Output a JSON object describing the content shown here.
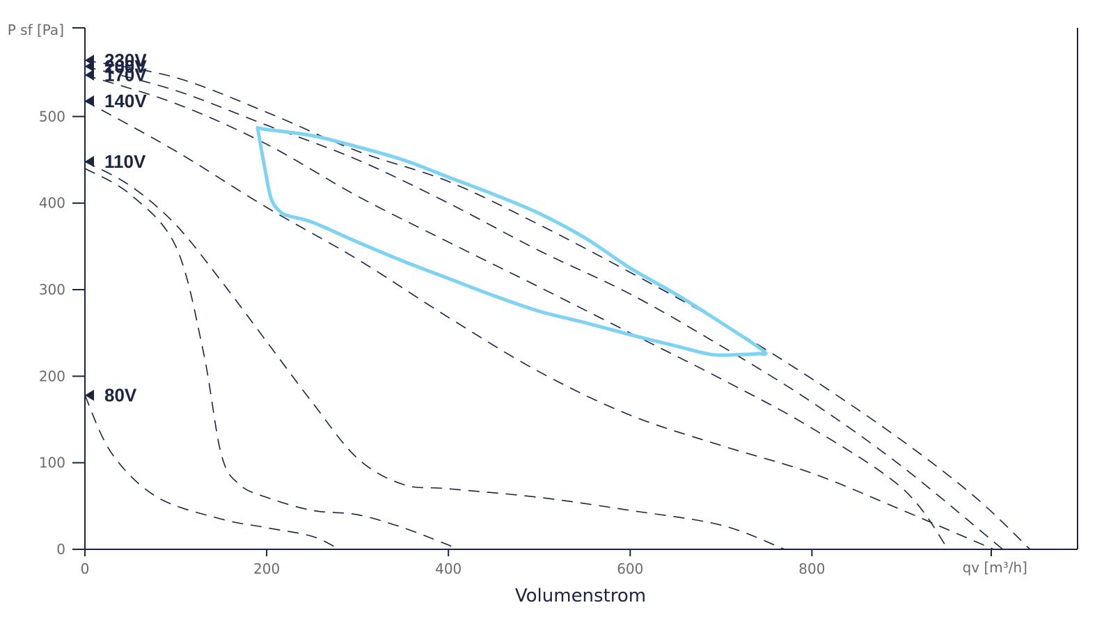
{
  "chart_data": {
    "type": "line",
    "title": "",
    "xlabel": "Volumenstrom",
    "x_axis_end_label": "qv [m³/h]",
    "ylabel": "P sf [Pa]",
    "xlim": [
      0,
      1090
    ],
    "ylim": [
      0,
      600
    ],
    "x_ticks": [
      0,
      200,
      400,
      600,
      800
    ],
    "y_ticks": [
      0,
      100,
      200,
      300,
      400,
      500
    ],
    "grid": false,
    "series": [
      {
        "name": "230V",
        "style": "dashed",
        "points": [
          [
            0,
            565
          ],
          [
            100,
            545
          ],
          [
            200,
            505
          ],
          [
            300,
            460
          ],
          [
            400,
            425
          ],
          [
            500,
            375
          ],
          [
            600,
            320
          ],
          [
            700,
            262
          ],
          [
            800,
            197
          ],
          [
            900,
            125
          ],
          [
            980,
            60
          ],
          [
            1040,
            0
          ]
        ]
      },
      {
        "name": "200V",
        "style": "dashed",
        "points": [
          [
            0,
            558
          ],
          [
            100,
            530
          ],
          [
            200,
            490
          ],
          [
            300,
            450
          ],
          [
            400,
            400
          ],
          [
            500,
            345
          ],
          [
            600,
            295
          ],
          [
            700,
            235
          ],
          [
            800,
            170
          ],
          [
            900,
            95
          ],
          [
            1010,
            0
          ]
        ]
      },
      {
        "name": "170V",
        "style": "dashed",
        "points": [
          [
            0,
            548
          ],
          [
            100,
            515
          ],
          [
            200,
            468
          ],
          [
            300,
            408
          ],
          [
            400,
            355
          ],
          [
            500,
            303
          ],
          [
            600,
            250
          ],
          [
            700,
            197
          ],
          [
            800,
            140
          ],
          [
            900,
            70
          ],
          [
            950,
            0
          ]
        ]
      },
      {
        "name": "140V",
        "style": "dashed",
        "points": [
          [
            0,
            518
          ],
          [
            100,
            460
          ],
          [
            200,
            395
          ],
          [
            300,
            335
          ],
          [
            400,
            268
          ],
          [
            500,
            205
          ],
          [
            600,
            155
          ],
          [
            700,
            120
          ],
          [
            800,
            88
          ],
          [
            900,
            45
          ],
          [
            960,
            18
          ],
          [
            1000,
            0
          ]
        ]
      },
      {
        "name": "110V",
        "style": "dashed",
        "points": [
          [
            0,
            448
          ],
          [
            50,
            420
          ],
          [
            100,
            375
          ],
          [
            150,
            310
          ],
          [
            200,
            240
          ],
          [
            250,
            170
          ],
          [
            300,
            105
          ],
          [
            350,
            75
          ],
          [
            400,
            70
          ],
          [
            500,
            60
          ],
          [
            600,
            45
          ],
          [
            700,
            28
          ],
          [
            770,
            0
          ]
        ]
      },
      {
        "name": "",
        "style": "dashed",
        "points": [
          [
            0,
            440
          ],
          [
            50,
            410
          ],
          [
            100,
            350
          ],
          [
            130,
            230
          ],
          [
            150,
            110
          ],
          [
            170,
            75
          ],
          [
            200,
            60
          ],
          [
            250,
            45
          ],
          [
            300,
            40
          ],
          [
            350,
            25
          ],
          [
            400,
            5
          ],
          [
            410,
            0
          ]
        ]
      },
      {
        "name": "80V",
        "style": "dashed",
        "points": [
          [
            0,
            178
          ],
          [
            30,
            110
          ],
          [
            80,
            60
          ],
          [
            150,
            35
          ],
          [
            200,
            25
          ],
          [
            250,
            15
          ],
          [
            280,
            0
          ]
        ]
      }
    ],
    "voltage_markers": [
      {
        "label": "230V",
        "y": 565
      },
      {
        "label": "200V",
        "y": 558
      },
      {
        "label": "170V",
        "y": 548
      },
      {
        "label": "140V",
        "y": 518
      },
      {
        "label": "110V",
        "y": 448
      },
      {
        "label": "80V",
        "y": 178
      }
    ],
    "operating_range": {
      "name": "",
      "color": "#7fd3f2",
      "points": [
        [
          190,
          487
        ],
        [
          200,
          485
        ],
        [
          250,
          478
        ],
        [
          300,
          465
        ],
        [
          350,
          450
        ],
        [
          400,
          430
        ],
        [
          450,
          410
        ],
        [
          500,
          388
        ],
        [
          550,
          360
        ],
        [
          600,
          325
        ],
        [
          650,
          295
        ],
        [
          700,
          262
        ],
        [
          747,
          229
        ],
        [
          740,
          226
        ],
        [
          720,
          225
        ],
        [
          690,
          225
        ],
        [
          650,
          235
        ],
        [
          600,
          248
        ],
        [
          550,
          262
        ],
        [
          500,
          275
        ],
        [
          450,
          293
        ],
        [
          400,
          313
        ],
        [
          350,
          333
        ],
        [
          300,
          355
        ],
        [
          250,
          378
        ],
        [
          225,
          385
        ],
        [
          215,
          390
        ],
        [
          205,
          405
        ],
        [
          198,
          440
        ],
        [
          190,
          487
        ]
      ]
    }
  }
}
